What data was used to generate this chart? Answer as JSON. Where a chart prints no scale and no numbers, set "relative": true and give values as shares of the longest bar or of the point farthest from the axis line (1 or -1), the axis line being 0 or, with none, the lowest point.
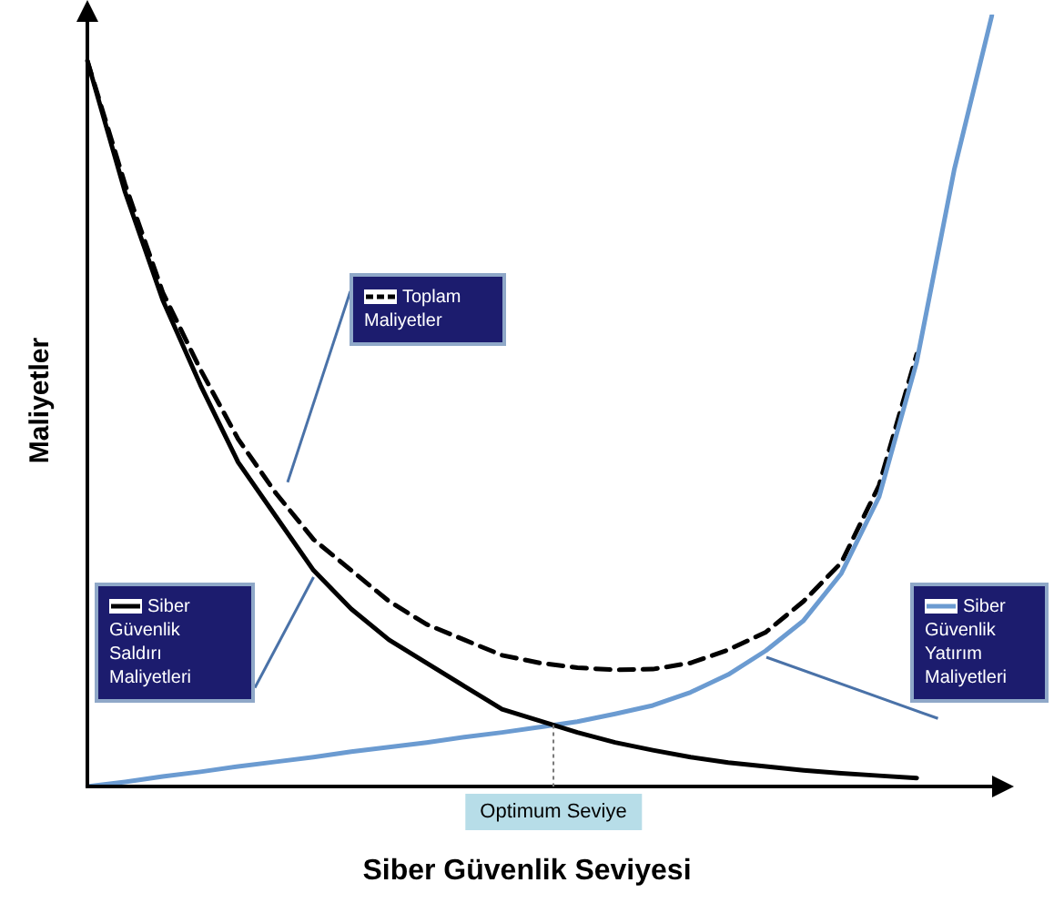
{
  "chart_data": {
    "type": "line",
    "relative": true,
    "xlabel": "Siber Güvenlik Seviyesi",
    "ylabel": "Maliyetler",
    "legend": "center",
    "marker": "none",
    "categories": [
      null,
      null,
      null,
      null,
      null,
      null,
      null,
      null,
      null,
      null,
      null,
      null,
      null,
      null,
      null,
      null,
      null,
      null,
      null,
      null,
      null,
      null,
      null,
      null,
      null
    ],
    "series": [
      {
        "name": "Siber Güvenlik Saldırı Maliyetleri",
        "color": "#000000",
        "line_style": "solid",
        "values": [
          0.94,
          0.77,
          0.63,
          0.52,
          0.42,
          0.35,
          0.28,
          0.23,
          0.19,
          0.16,
          0.13,
          0.1,
          0.085,
          0.07,
          0.057,
          0.047,
          0.038,
          0.031,
          0.026,
          0.021,
          0.017,
          0.014,
          0.011,
          null,
          null
        ]
      },
      {
        "name": "Siber Güvenlik Yatırım Maliyetleri",
        "color": "#6b9bd1",
        "line_style": "solid",
        "values": [
          0,
          0.006,
          0.013,
          0.019,
          0.026,
          0.032,
          0.038,
          0.045,
          0.051,
          0.057,
          0.064,
          0.07,
          0.077,
          0.084,
          0.094,
          0.105,
          0.122,
          0.145,
          0.176,
          0.215,
          0.276,
          0.375,
          0.55,
          0.8,
          1
        ]
      },
      {
        "name": "Toplam Maliyetler",
        "color": "#000000",
        "line_style": "dashed",
        "values": [
          0.94,
          0.78,
          0.64,
          0.54,
          0.45,
          0.38,
          0.32,
          0.28,
          0.24,
          0.21,
          0.19,
          0.17,
          0.16,
          0.154,
          0.151,
          0.152,
          0.16,
          0.177,
          0.2,
          0.24,
          0.29,
          0.39,
          0.56,
          null,
          null
        ]
      }
    ],
    "annotations": [
      "Optimum Seviye"
    ]
  }
}
